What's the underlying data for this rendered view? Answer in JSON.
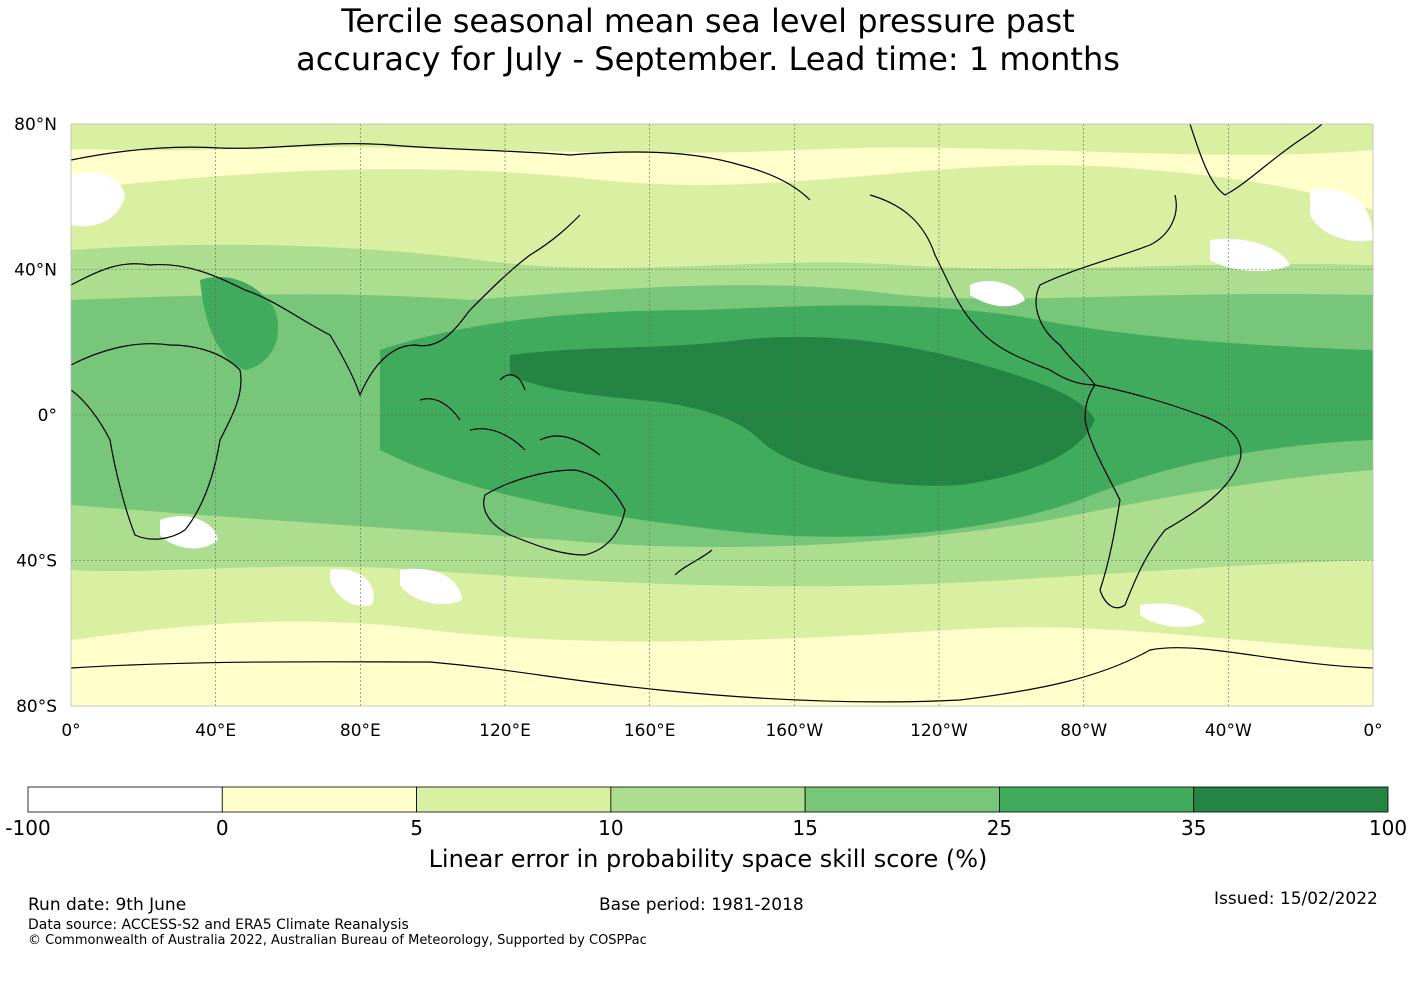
{
  "title": {
    "line1": "Tercile seasonal mean sea level pressure past",
    "line2": "accuracy for July - September. Lead time: 1 months"
  },
  "map": {
    "lat_labels": [
      "80°N",
      "40°N",
      "0°",
      "40°S",
      "80°S"
    ],
    "lon_labels": [
      "0°",
      "40°E",
      "80°E",
      "120°E",
      "160°E",
      "160°W",
      "120°W",
      "80°W",
      "40°W",
      "0°"
    ]
  },
  "colorbar": {
    "ticks": [
      "-100",
      "0",
      "5",
      "10",
      "15",
      "25",
      "35",
      "100"
    ],
    "colors": [
      "#ffffff",
      "#ffffcc",
      "#d9f0a3",
      "#addd8e",
      "#78c679",
      "#41ab5d",
      "#238443"
    ],
    "label": "Linear error in probability space skill score (%)"
  },
  "footer": {
    "run_date": "Run date: 9th June",
    "base_period": "Base period: 1981-2018",
    "issued": "Issued: 15/02/2022",
    "data_source": "Data source: ACCESS-S2 and ERA5 Climate Reanalysis",
    "copyright": "© Commonwealth of Australia 2022, Australian Bureau of Meteorology, Supported by COSPPac"
  }
}
